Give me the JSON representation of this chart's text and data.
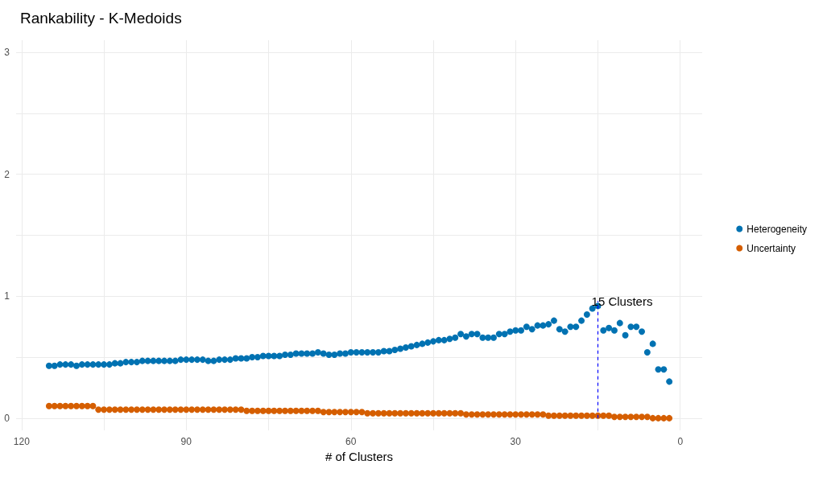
{
  "chart_data": {
    "type": "scatter",
    "title": "Rankability - K-Medoids",
    "xlabel": "# of Clusters",
    "x": [
      115,
      114,
      113,
      112,
      111,
      110,
      109,
      108,
      107,
      106,
      105,
      104,
      103,
      102,
      101,
      100,
      99,
      98,
      97,
      96,
      95,
      94,
      93,
      92,
      91,
      90,
      89,
      88,
      87,
      86,
      85,
      84,
      83,
      82,
      81,
      80,
      79,
      78,
      77,
      76,
      75,
      74,
      73,
      72,
      71,
      70,
      69,
      68,
      67,
      66,
      65,
      64,
      63,
      62,
      61,
      60,
      59,
      58,
      57,
      56,
      55,
      54,
      53,
      52,
      51,
      50,
      49,
      48,
      47,
      46,
      45,
      44,
      43,
      42,
      41,
      40,
      39,
      38,
      37,
      36,
      35,
      34,
      33,
      32,
      31,
      30,
      29,
      28,
      27,
      26,
      25,
      24,
      23,
      22,
      21,
      20,
      19,
      18,
      17,
      16,
      15,
      14,
      13,
      12,
      11,
      10,
      9,
      8,
      7,
      6,
      5,
      4,
      3,
      2
    ],
    "series": [
      {
        "name": "Heterogeneity",
        "color": "#0072b2",
        "values": [
          0.43,
          0.43,
          0.44,
          0.44,
          0.44,
          0.43,
          0.44,
          0.44,
          0.44,
          0.44,
          0.44,
          0.44,
          0.45,
          0.45,
          0.46,
          0.46,
          0.46,
          0.47,
          0.47,
          0.47,
          0.47,
          0.47,
          0.47,
          0.47,
          0.48,
          0.48,
          0.48,
          0.48,
          0.48,
          0.47,
          0.47,
          0.48,
          0.48,
          0.48,
          0.49,
          0.49,
          0.49,
          0.5,
          0.5,
          0.51,
          0.51,
          0.51,
          0.51,
          0.52,
          0.52,
          0.53,
          0.53,
          0.53,
          0.53,
          0.54,
          0.53,
          0.52,
          0.52,
          0.53,
          0.53,
          0.54,
          0.54,
          0.54,
          0.54,
          0.54,
          0.54,
          0.55,
          0.55,
          0.56,
          0.57,
          0.58,
          0.59,
          0.6,
          0.61,
          0.62,
          0.63,
          0.64,
          0.64,
          0.65,
          0.66,
          0.69,
          0.67,
          0.69,
          0.69,
          0.66,
          0.66,
          0.66,
          0.69,
          0.69,
          0.71,
          0.72,
          0.72,
          0.75,
          0.73,
          0.76,
          0.76,
          0.77,
          0.8,
          0.73,
          0.71,
          0.75,
          0.75,
          0.8,
          0.85,
          0.9,
          0.92,
          0.72,
          0.74,
          0.72,
          0.78,
          0.68,
          0.75,
          0.75,
          0.71,
          0.54,
          0.61,
          0.4,
          0.4,
          0.3
        ]
      },
      {
        "name": "Uncertainty",
        "color": "#d55e00",
        "values": [
          0.1,
          0.1,
          0.1,
          0.1,
          0.1,
          0.1,
          0.1,
          0.1,
          0.1,
          0.07,
          0.07,
          0.07,
          0.07,
          0.07,
          0.07,
          0.07,
          0.07,
          0.07,
          0.07,
          0.07,
          0.07,
          0.07,
          0.07,
          0.07,
          0.07,
          0.07,
          0.07,
          0.07,
          0.07,
          0.07,
          0.07,
          0.07,
          0.07,
          0.07,
          0.07,
          0.07,
          0.06,
          0.06,
          0.06,
          0.06,
          0.06,
          0.06,
          0.06,
          0.06,
          0.06,
          0.06,
          0.06,
          0.06,
          0.06,
          0.06,
          0.05,
          0.05,
          0.05,
          0.05,
          0.05,
          0.05,
          0.05,
          0.05,
          0.04,
          0.04,
          0.04,
          0.04,
          0.04,
          0.04,
          0.04,
          0.04,
          0.04,
          0.04,
          0.04,
          0.04,
          0.04,
          0.04,
          0.04,
          0.04,
          0.04,
          0.04,
          0.03,
          0.03,
          0.03,
          0.03,
          0.03,
          0.03,
          0.03,
          0.03,
          0.03,
          0.03,
          0.03,
          0.03,
          0.03,
          0.03,
          0.03,
          0.02,
          0.02,
          0.02,
          0.02,
          0.02,
          0.02,
          0.02,
          0.02,
          0.02,
          0.02,
          0.02,
          0.02,
          0.01,
          0.01,
          0.01,
          0.01,
          0.01,
          0.01,
          0.01,
          0.0,
          0.0,
          0.0,
          0.0
        ]
      }
    ],
    "xlim": [
      121,
      -4
    ],
    "xticks": [
      120,
      {
        "value": 105,
        "label": null
      },
      90,
      {
        "value": 75,
        "label": null
      },
      60,
      {
        "value": 45,
        "label": null
      },
      30,
      {
        "value": 15,
        "label": null
      },
      0
    ],
    "ylim": [
      -0.1,
      3.1
    ],
    "yticks": [
      0,
      {
        "value": 0.5,
        "label": null
      },
      1,
      {
        "value": 1.5,
        "label": null
      },
      2,
      {
        "value": 2.5,
        "label": null
      },
      3
    ],
    "ref_lines": [
      {
        "axis": "x",
        "value": 15,
        "color": "#0000ff",
        "line_style": "dashed"
      }
    ],
    "annotations": [
      {
        "text": "15 Clusters",
        "x": 15,
        "y": 0.96
      }
    ],
    "grid": true,
    "legend": "right",
    "marker": "circle"
  }
}
